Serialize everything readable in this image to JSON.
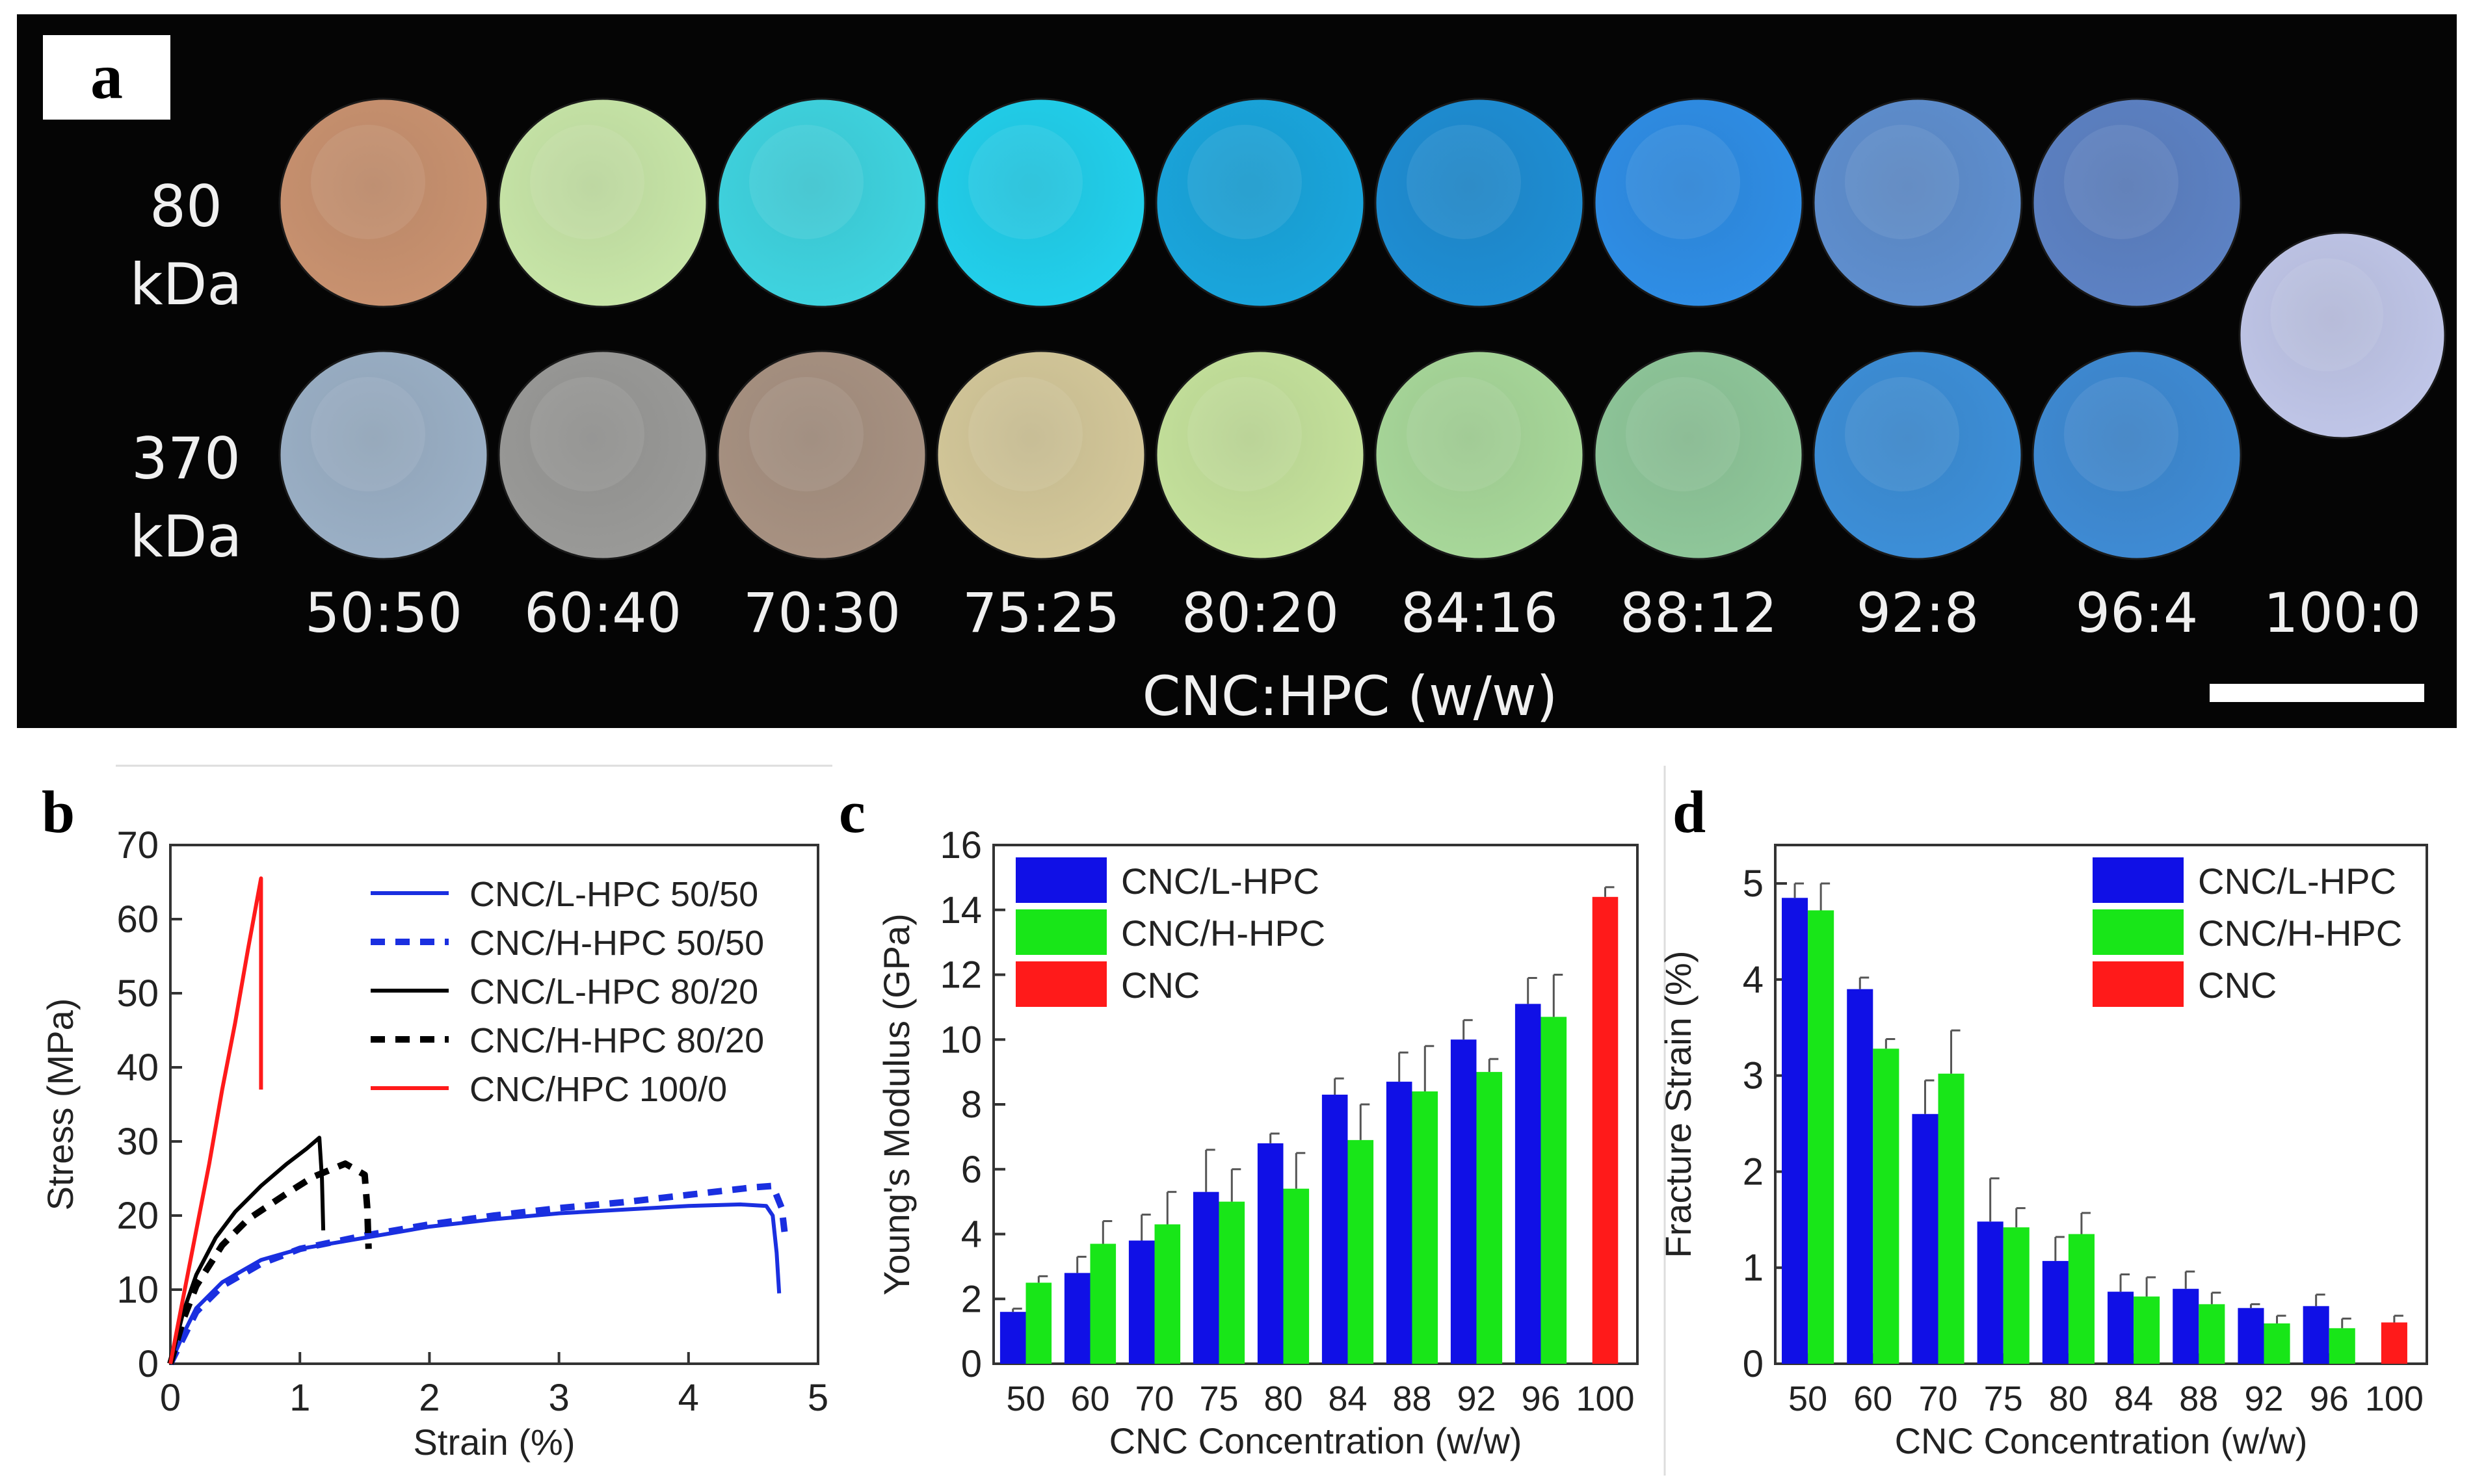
{
  "panel_a": {
    "label": "a",
    "row_labels": [
      {
        "value": "80",
        "unit": "kDa"
      },
      {
        "value": "370",
        "unit": "kDa"
      }
    ],
    "ratios": [
      "50:50",
      "60:40",
      "70:30",
      "75:25",
      "80:20",
      "84:16",
      "88:12",
      "92:8",
      "96:4",
      "100:0"
    ],
    "axis_title": "CNC:HPC (w/w)",
    "row1_colors": [
      "#c99270",
      "#c8e6a8",
      "#3fd4e0",
      "#22d0ec",
      "#1aa6dd",
      "#1f8ed4",
      "#2f8ee6",
      "#5f8fcf",
      "#5d82c4"
    ],
    "row2_colors": [
      "#9bb0c6",
      "#9a9a98",
      "#a89282",
      "#d4c89a",
      "#c5e29c",
      "#a8d89a",
      "#8fc79a",
      "#3d8fd8",
      "#3f8bd4"
    ],
    "single_color": "#c0c6e8"
  },
  "chart_data": [
    {
      "panel": "b",
      "type": "line",
      "xlabel": "Strain (%)",
      "ylabel": "Stress (MPa)",
      "xlim": [
        0,
        5
      ],
      "ylim": [
        0,
        70
      ],
      "xticks": [
        "0",
        "1",
        "2",
        "3",
        "4",
        "5"
      ],
      "yticks": [
        "0",
        "10",
        "20",
        "30",
        "40",
        "50",
        "60",
        "70"
      ],
      "series": [
        {
          "name": "CNC/L-HPC 50/50",
          "color": "#1a2fe0",
          "dash": "solid",
          "x": [
            0,
            0.1,
            0.2,
            0.4,
            0.7,
            1.0,
            1.5,
            2.0,
            2.5,
            3.0,
            3.5,
            4.0,
            4.4,
            4.6,
            4.65,
            4.68,
            4.7
          ],
          "y": [
            0,
            4,
            7.5,
            11,
            14,
            15.5,
            17,
            18.5,
            19.5,
            20.3,
            20.8,
            21.3,
            21.5,
            21.3,
            20,
            15,
            9.5
          ]
        },
        {
          "name": "CNC/H-HPC 50/50",
          "color": "#1a2fe0",
          "dash": "dashed",
          "x": [
            0,
            0.1,
            0.2,
            0.4,
            0.7,
            1.0,
            1.5,
            2.0,
            2.5,
            3.0,
            3.5,
            4.0,
            4.5,
            4.65,
            4.72,
            4.75
          ],
          "y": [
            0,
            3.5,
            7,
            10.5,
            13.5,
            15.5,
            17.3,
            18.8,
            20,
            21,
            21.8,
            22.8,
            23.8,
            24,
            21,
            16.5
          ]
        },
        {
          "name": "CNC/L-HPC 80/20",
          "color": "#000000",
          "dash": "solid",
          "x": [
            0,
            0.1,
            0.2,
            0.35,
            0.5,
            0.7,
            0.9,
            1.05,
            1.15,
            1.17,
            1.18
          ],
          "y": [
            0,
            7,
            12,
            17,
            20.5,
            24,
            27,
            29,
            30.5,
            25,
            18
          ]
        },
        {
          "name": "CNC/H-HPC 80/20",
          "color": "#000000",
          "dash": "dashed",
          "x": [
            0,
            0.1,
            0.2,
            0.4,
            0.6,
            0.9,
            1.1,
            1.35,
            1.5,
            1.52,
            1.53
          ],
          "y": [
            0,
            6,
            10.5,
            16,
            19.5,
            23,
            25.2,
            27,
            25.5,
            21,
            15.5
          ]
        },
        {
          "name": "CNC/HPC 100/0",
          "color": "#ff1a1a",
          "dash": "solid",
          "x": [
            0,
            0.1,
            0.2,
            0.3,
            0.4,
            0.5,
            0.6,
            0.7,
            0.7,
            0.7
          ],
          "y": [
            0,
            9,
            18,
            27,
            37,
            46,
            56,
            65.5,
            52,
            37
          ]
        }
      ]
    },
    {
      "panel": "c",
      "type": "bar",
      "xlabel": "CNC Concentration (w/w)",
      "ylabel": "Young's Modulus (GPa)",
      "ylim": [
        0,
        16
      ],
      "yticks": [
        "0",
        "2",
        "4",
        "6",
        "8",
        "10",
        "12",
        "14",
        "16"
      ],
      "categories": [
        "50",
        "60",
        "70",
        "75",
        "80",
        "84",
        "88",
        "92",
        "96",
        "100"
      ],
      "series": [
        {
          "name": "CNC/L-HPC",
          "color": "#1010e6",
          "values": [
            1.6,
            2.8,
            3.8,
            5.3,
            6.8,
            8.3,
            8.7,
            10.0,
            11.1,
            null
          ],
          "errors": [
            0.1,
            0.5,
            0.8,
            1.3,
            0.3,
            0.5,
            0.9,
            0.6,
            0.8,
            null
          ]
        },
        {
          "name": "CNC/H-HPC",
          "color": "#18e618",
          "values": [
            2.5,
            3.7,
            4.3,
            5.0,
            5.4,
            6.9,
            8.4,
            9.0,
            10.7,
            null
          ],
          "errors": [
            0.2,
            0.7,
            1.0,
            1.0,
            1.1,
            1.1,
            1.4,
            0.4,
            1.3,
            null
          ]
        },
        {
          "name": "CNC",
          "color": "#ff1a1a",
          "values": [
            null,
            null,
            null,
            null,
            null,
            null,
            null,
            null,
            null,
            14.4
          ],
          "errors": [
            null,
            null,
            null,
            null,
            null,
            null,
            null,
            null,
            null,
            0.3
          ]
        }
      ]
    },
    {
      "panel": "d",
      "type": "bar",
      "xlabel": "CNC Concentration (w/w)",
      "ylabel": "Fracture Strain (%)",
      "ylim": [
        0,
        5.4
      ],
      "yticks": [
        "0",
        "1",
        "2",
        "3",
        "4",
        "5"
      ],
      "categories": [
        "50",
        "60",
        "70",
        "75",
        "80",
        "84",
        "88",
        "92",
        "96",
        "100"
      ],
      "series": [
        {
          "name": "CNC/L-HPC",
          "color": "#1010e6",
          "values": [
            4.85,
            3.9,
            2.6,
            1.48,
            1.07,
            0.75,
            0.78,
            0.58,
            0.6,
            null
          ],
          "errors": [
            0.15,
            0.12,
            0.35,
            0.45,
            0.25,
            0.18,
            0.18,
            0.04,
            0.12,
            null
          ]
        },
        {
          "name": "CNC/H-HPC",
          "color": "#18e618",
          "values": [
            4.72,
            3.28,
            3.02,
            1.42,
            1.35,
            0.7,
            0.62,
            0.42,
            0.37,
            null
          ],
          "errors": [
            0.28,
            0.1,
            0.45,
            0.2,
            0.22,
            0.2,
            0.12,
            0.08,
            0.1,
            null
          ]
        },
        {
          "name": "CNC",
          "color": "#ff1a1a",
          "values": [
            null,
            null,
            null,
            null,
            null,
            null,
            null,
            null,
            null,
            0.43
          ],
          "errors": [
            null,
            null,
            null,
            null,
            null,
            null,
            null,
            null,
            null,
            0.07
          ]
        }
      ]
    }
  ]
}
